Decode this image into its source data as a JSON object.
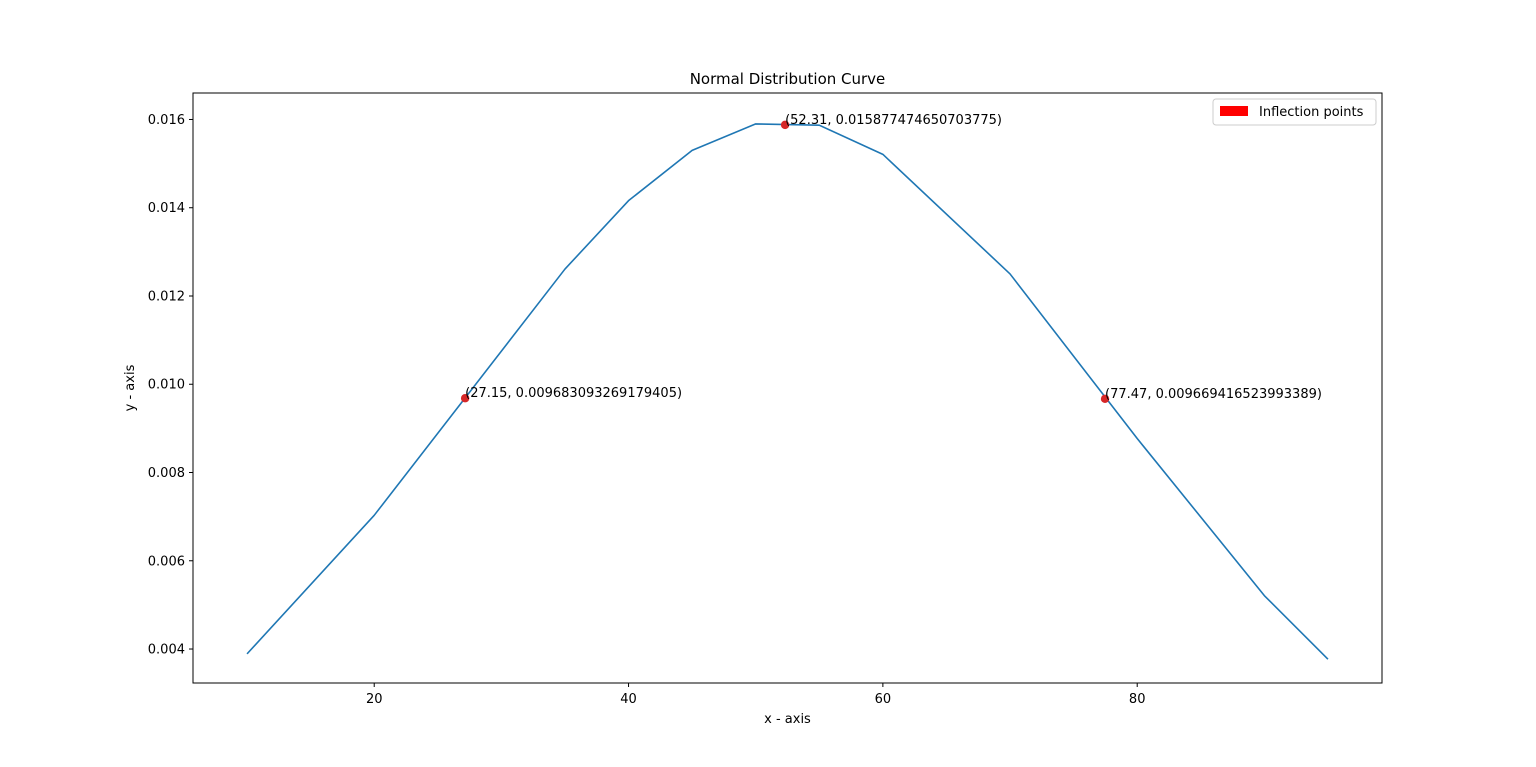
{
  "chart_data": {
    "type": "line",
    "title": "Normal Distribution Curve",
    "xlabel": "x - axis",
    "ylabel": "y - axis",
    "xlim": [
      5.75,
      99.25
    ],
    "ylim": [
      0.00323,
      0.0166
    ],
    "x_ticks": [
      20,
      40,
      60,
      80
    ],
    "x_tick_labels": [
      "20",
      "40",
      "60",
      "80"
    ],
    "y_ticks": [
      0.004,
      0.006,
      0.008,
      0.01,
      0.012,
      0.014,
      0.016
    ],
    "y_tick_labels": [
      "0.004",
      "0.006",
      "0.008",
      "0.010",
      "0.012",
      "0.014",
      "0.016"
    ],
    "grid": false,
    "legend": {
      "position": "top-right",
      "entries": [
        {
          "label": "Inflection points",
          "color": "#ff0000"
        }
      ]
    },
    "series": [
      {
        "color": "#1f77b4",
        "x": [
          10,
          20,
          35,
          40,
          45,
          50,
          55,
          60,
          70,
          80,
          90,
          95
        ],
        "y": [
          0.00389,
          0.00703,
          0.01261,
          0.01416,
          0.0153,
          0.0159,
          0.01587,
          0.01521,
          0.0125,
          0.00877,
          0.00521,
          0.00377
        ]
      }
    ],
    "points": {
      "color": "#d62728",
      "items": [
        {
          "x": 27.15,
          "y": 0.009683093269179405,
          "label": "(27.15, 0.009683093269179405)"
        },
        {
          "x": 52.31,
          "y": 0.015877474650703775,
          "label": "(52.31, 0.015877474650703775)"
        },
        {
          "x": 77.47,
          "y": 0.009669416523993389,
          "label": "(77.47, 0.009669416523993389)"
        }
      ]
    }
  }
}
